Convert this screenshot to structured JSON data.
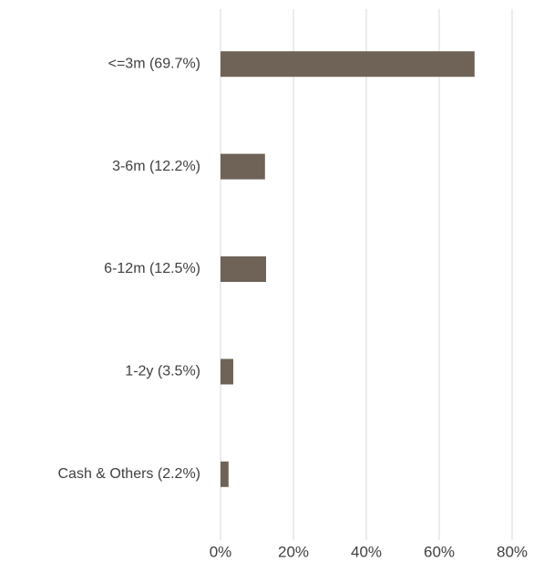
{
  "chart_data": {
    "type": "hbar",
    "categories": [
      "<=3m (69.7%)",
      "3-6m (12.2%)",
      "6-12m (12.5%)",
      "1-2y (3.5%)",
      "Cash & Others (2.2%)"
    ],
    "values": [
      69.7,
      12.2,
      12.5,
      3.5,
      2.2
    ],
    "color": "#6f6358",
    "xlim": [
      0,
      80
    ],
    "xticks": [
      {
        "value": 0,
        "label": "0%"
      },
      {
        "value": 20,
        "label": "20%"
      },
      {
        "value": 40,
        "label": "40%"
      },
      {
        "value": 60,
        "label": "60%"
      },
      {
        "value": 80,
        "label": "80%"
      }
    ],
    "grid": true
  }
}
